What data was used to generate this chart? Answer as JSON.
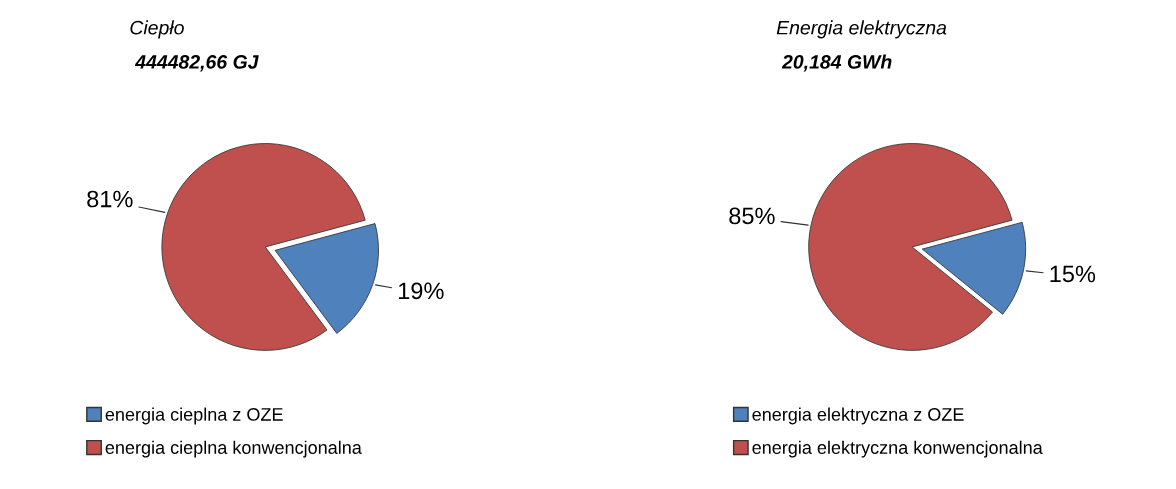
{
  "chart_data": [
    {
      "type": "pie",
      "title": "Ciepło",
      "subtitle": "444482,66 GJ",
      "categories": [
        "energia cieplna z OZE",
        "energia cieplna konwencjonalna"
      ],
      "values": [
        19,
        81
      ],
      "colors": [
        "#4f81bd",
        "#c0504d"
      ],
      "value_labels": [
        "19%",
        "81%"
      ],
      "legend": "bottom"
    },
    {
      "type": "pie",
      "title": "Energia elektryczna",
      "subtitle": "20,184 GWh",
      "categories": [
        "energia elektryczna z OZE",
        "energia elektryczna konwencjonalna"
      ],
      "values": [
        15,
        85
      ],
      "colors": [
        "#4f81bd",
        "#c0504d"
      ],
      "value_labels": [
        "15%",
        "85%"
      ],
      "legend": "bottom"
    }
  ]
}
